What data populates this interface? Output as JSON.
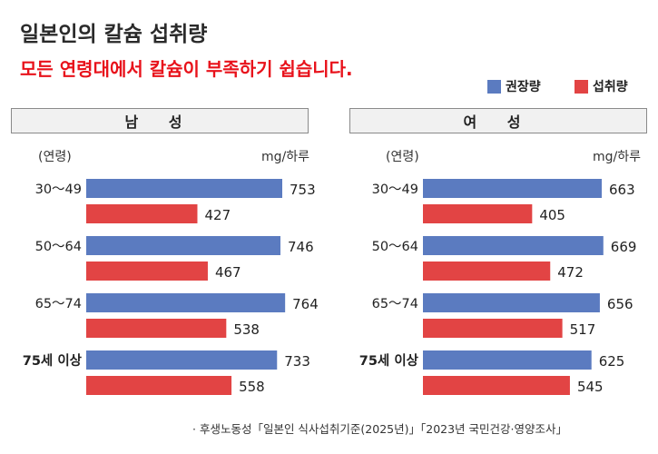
{
  "title": "일본인의 칼슘 섭취량",
  "subtitle": "모든 연령대에서 칼슘이 부족하기 쉽습니다.",
  "legend": [
    {
      "label": "권장량",
      "color": "#5b7bc0"
    },
    {
      "label": "섭취량",
      "color": "#e24444"
    }
  ],
  "source": "· 후생노동성「일본인 식사섭취기준(2025년)」「2023년 국민건강·영양조사」",
  "chart_data": [
    {
      "type": "bar",
      "orientation": "horizontal",
      "title": "남 성",
      "xlabel": "mg/하루",
      "ylabel": "(연령)",
      "categories": [
        "30〜49",
        "50〜64",
        "65〜74",
        "75세 이상"
      ],
      "series": [
        {
          "name": "권장량",
          "color": "#5b7bc0",
          "values": [
            753,
            746,
            764,
            733
          ]
        },
        {
          "name": "섭취량",
          "color": "#e24444",
          "values": [
            427,
            467,
            538,
            558
          ]
        }
      ]
    },
    {
      "type": "bar",
      "orientation": "horizontal",
      "title": "여 성",
      "xlabel": "mg/하루",
      "ylabel": "(연령)",
      "categories": [
        "30〜49",
        "50〜64",
        "65〜74",
        "75세 이상"
      ],
      "series": [
        {
          "name": "권장량",
          "color": "#5b7bc0",
          "values": [
            663,
            669,
            656,
            625
          ]
        },
        {
          "name": "섭취량",
          "color": "#e24444",
          "values": [
            405,
            472,
            517,
            545
          ]
        }
      ]
    }
  ]
}
